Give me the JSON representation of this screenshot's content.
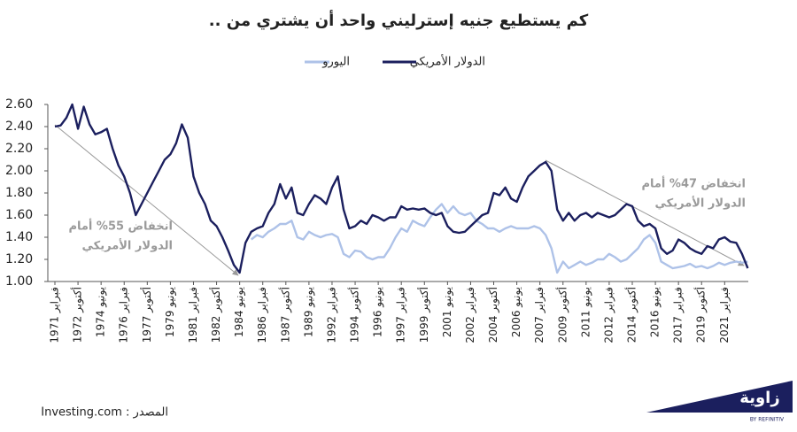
{
  "chart_data": {
    "type": "line",
    "title": "كم يستطيع جنيه إسترليني واحد أن يشتري من ..",
    "categories": [
      "فبراير 1971",
      null,
      null,
      null,
      "أكتوبر 1972",
      null,
      null,
      null,
      "يونيو 1974",
      null,
      null,
      null,
      "فبراير 1976",
      null,
      null,
      null,
      "أكتوبر 1977",
      null,
      null,
      null,
      "يونيو 1979",
      null,
      null,
      null,
      "فبراير 1981",
      null,
      null,
      null,
      "أكتوبر 1982",
      null,
      null,
      null,
      "يونيو 1984",
      null,
      null,
      null,
      "فبراير 1986",
      null,
      null,
      null,
      "أكتوبر 1987",
      null,
      null,
      null,
      "يونيو 1989",
      null,
      null,
      null,
      "فبراير 1992",
      null,
      null,
      null,
      "أكتوبر 1994",
      null,
      null,
      null,
      "يونيو 1996",
      null,
      null,
      null,
      "فبراير 1997",
      null,
      null,
      null,
      "أكتوبر 1999",
      null,
      null,
      null,
      "يونيو 2001",
      null,
      null,
      null,
      "فبراير 2002",
      null,
      null,
      null,
      "أكتوبر 2004",
      null,
      null,
      null,
      "يونيو 2006",
      null,
      null,
      null,
      "فبراير 2007",
      null,
      null,
      null,
      "أكتوبر 2009",
      null,
      null,
      null,
      "يونيو 2011",
      null,
      null,
      null,
      "فبراير 2012",
      null,
      null,
      null,
      "أكتوبر 2014",
      null,
      null,
      null,
      "يونيو 2016",
      null,
      null,
      null,
      "فبراير 2017",
      null,
      null,
      null,
      "أكتوبر 2019",
      null,
      null,
      null,
      "فبراير 2021",
      null,
      null,
      null,
      null
    ],
    "series": [
      {
        "name": "الدولار الأمريكي",
        "color": "#1b1f5e",
        "values": [
          2.4,
          2.41,
          2.48,
          2.6,
          2.38,
          2.58,
          2.42,
          2.33,
          2.35,
          2.38,
          2.2,
          2.05,
          1.95,
          1.8,
          1.6,
          1.7,
          1.8,
          1.9,
          2.0,
          2.1,
          2.15,
          2.25,
          2.42,
          2.3,
          1.95,
          1.8,
          1.7,
          1.55,
          1.5,
          1.4,
          1.28,
          1.15,
          1.08,
          1.35,
          1.45,
          1.48,
          1.5,
          1.62,
          1.7,
          1.88,
          1.75,
          1.85,
          1.62,
          1.6,
          1.7,
          1.78,
          1.75,
          1.7,
          1.85,
          1.95,
          1.65,
          1.48,
          1.5,
          1.55,
          1.52,
          1.6,
          1.58,
          1.55,
          1.58,
          1.58,
          1.68,
          1.65,
          1.66,
          1.65,
          1.66,
          1.62,
          1.6,
          1.62,
          1.5,
          1.45,
          1.44,
          1.45,
          1.5,
          1.55,
          1.6,
          1.62,
          1.8,
          1.78,
          1.85,
          1.75,
          1.72,
          1.85,
          1.95,
          2.0,
          2.05,
          2.08,
          2.0,
          1.65,
          1.55,
          1.62,
          1.55,
          1.6,
          1.62,
          1.58,
          1.62,
          1.6,
          1.58,
          1.6,
          1.65,
          1.7,
          1.68,
          1.55,
          1.5,
          1.52,
          1.48,
          1.3,
          1.25,
          1.28,
          1.38,
          1.35,
          1.3,
          1.27,
          1.25,
          1.32,
          1.3,
          1.38,
          1.4,
          1.36,
          1.35,
          1.25,
          1.12
        ]
      },
      {
        "name": "اليورو",
        "color": "#aec2e8",
        "values": [
          null,
          null,
          null,
          null,
          null,
          null,
          null,
          null,
          null,
          null,
          null,
          null,
          null,
          null,
          null,
          null,
          null,
          null,
          null,
          null,
          null,
          null,
          null,
          null,
          null,
          null,
          null,
          null,
          null,
          null,
          null,
          null,
          null,
          null,
          1.38,
          1.42,
          1.4,
          1.45,
          1.48,
          1.52,
          1.52,
          1.55,
          1.4,
          1.38,
          1.45,
          1.42,
          1.4,
          1.42,
          1.43,
          1.4,
          1.25,
          1.22,
          1.28,
          1.27,
          1.22,
          1.2,
          1.22,
          1.22,
          1.3,
          1.4,
          1.48,
          1.45,
          1.55,
          1.52,
          1.5,
          1.58,
          1.65,
          1.7,
          1.62,
          1.68,
          1.62,
          1.6,
          1.62,
          1.55,
          1.52,
          1.48,
          1.48,
          1.45,
          1.48,
          1.5,
          1.48,
          1.48,
          1.48,
          1.5,
          1.48,
          1.42,
          1.3,
          1.08,
          1.18,
          1.12,
          1.15,
          1.18,
          1.15,
          1.17,
          1.2,
          1.2,
          1.25,
          1.22,
          1.18,
          1.2,
          1.25,
          1.3,
          1.38,
          1.42,
          1.35,
          1.18,
          1.15,
          1.12,
          1.13,
          1.14,
          1.16,
          1.13,
          1.14,
          1.12,
          1.14,
          1.17,
          1.15,
          1.17,
          1.18,
          1.17,
          1.18
        ]
      }
    ],
    "ylim": [
      1.0,
      2.6
    ],
    "yticks": [
      {
        "value": 1.0,
        "label": "1.00"
      },
      {
        "value": 1.2,
        "label": "1.20"
      },
      {
        "value": 1.4,
        "label": "1.40"
      },
      {
        "value": 1.6,
        "label": "1.60"
      },
      {
        "value": 1.8,
        "label": "1.80"
      },
      {
        "value": 2.0,
        "label": "2.00"
      },
      {
        "value": 2.2,
        "label": "2.20"
      },
      {
        "value": 2.4,
        "label": "2.40"
      },
      {
        "value": 2.6,
        "label": "2.60"
      }
    ],
    "grid": false,
    "annotations": [
      {
        "lines": [
          "انخفاض 55% أمام",
          "الدولار الأمريكي"
        ]
      },
      {
        "lines": [
          "انخفاض 47% أمام",
          "الدولار الأمريكي"
        ]
      }
    ],
    "source": "المصدر : Investing.com",
    "logo": {
      "name": "زاوية",
      "tagline": "BY REFINITIV"
    }
  }
}
